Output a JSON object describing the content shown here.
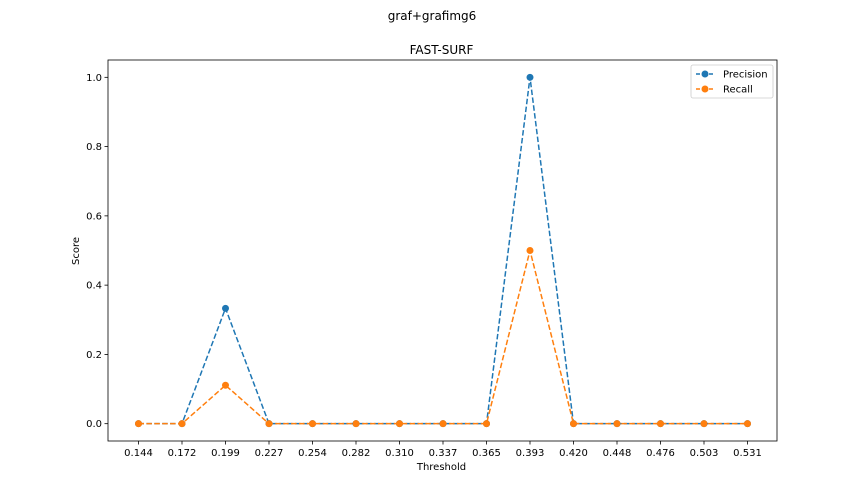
{
  "figure": {
    "suptitle": "graf+grafimg6"
  },
  "chart_data": {
    "type": "line",
    "title": "FAST-SURF",
    "xlabel": "Threshold",
    "ylabel": "Score",
    "categories": [
      "0.144",
      "0.172",
      "0.199",
      "0.227",
      "0.254",
      "0.282",
      "0.310",
      "0.337",
      "0.365",
      "0.393",
      "0.420",
      "0.448",
      "0.476",
      "0.503",
      "0.531"
    ],
    "yticks": [
      "0.0",
      "0.2",
      "0.4",
      "0.6",
      "0.8",
      "1.0"
    ],
    "ylim": [
      -0.05,
      1.05
    ],
    "grid": false,
    "legend_position": "top-right",
    "line_style": "dashed",
    "marker": "circle",
    "series": [
      {
        "name": "Precision",
        "color": "#1f77b4",
        "values": [
          0,
          0,
          0.333,
          0,
          0,
          0,
          0,
          0,
          0,
          1.0,
          0,
          0,
          0,
          0,
          0
        ]
      },
      {
        "name": "Recall",
        "color": "#ff7f0e",
        "values": [
          0,
          0,
          0.111,
          0,
          0,
          0,
          0,
          0,
          0,
          0.5,
          0,
          0,
          0,
          0,
          0
        ]
      }
    ]
  }
}
